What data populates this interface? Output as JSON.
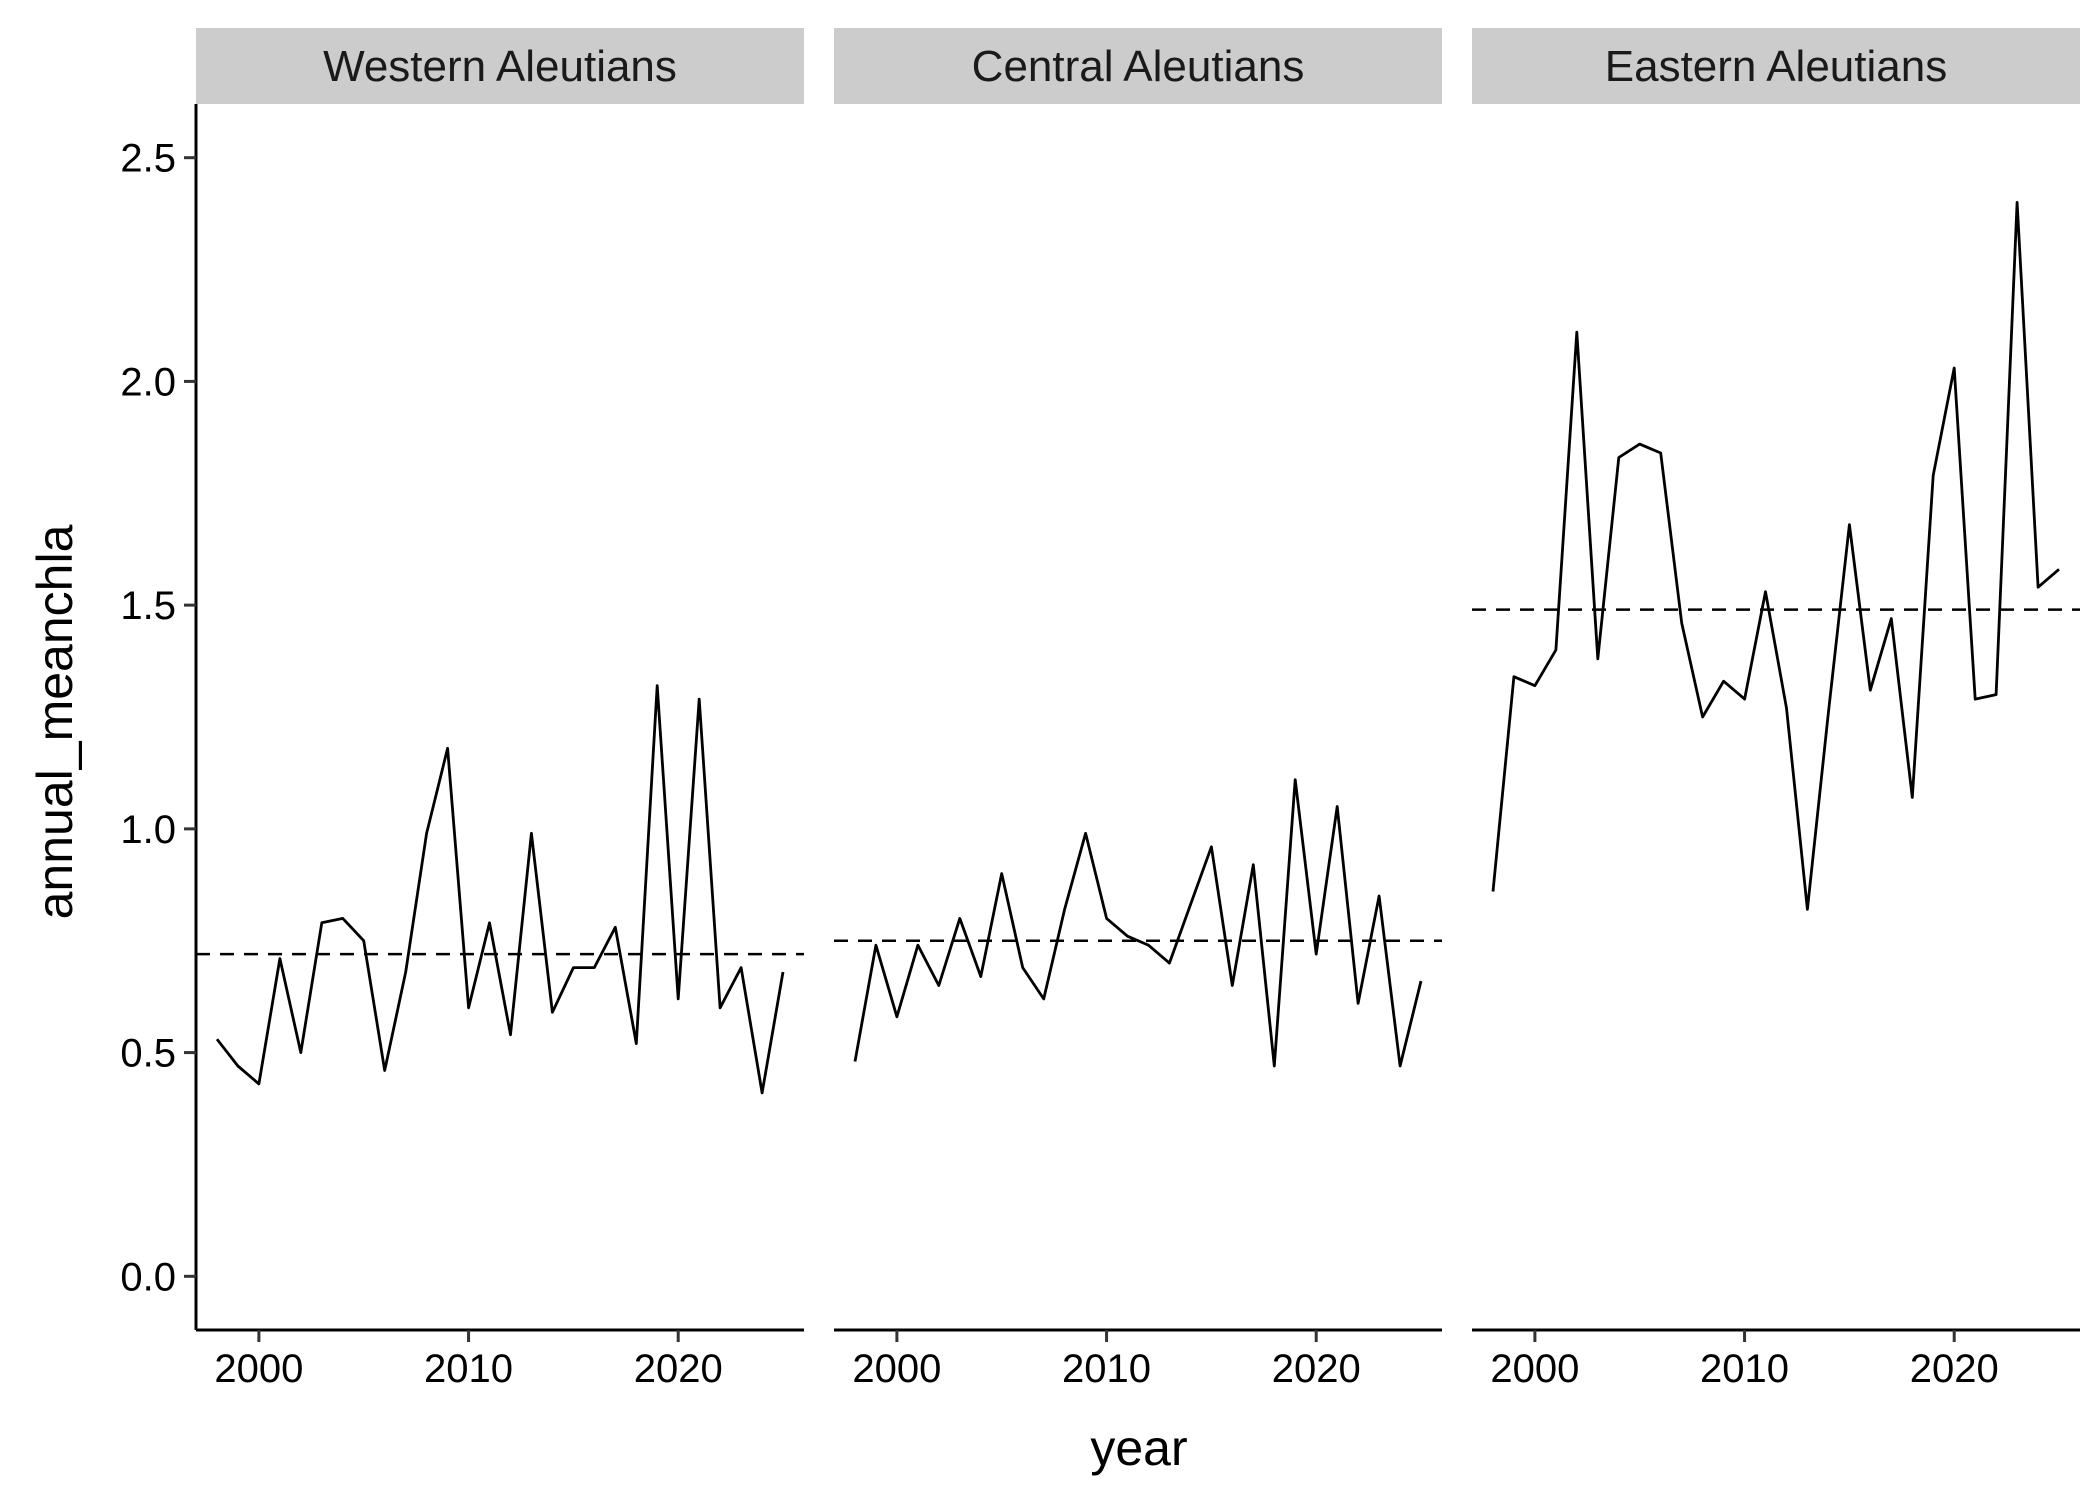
{
  "chart_data": {
    "type": "line",
    "xlabel": "year",
    "ylabel": "annual_meanchla",
    "xlim": [
      1997,
      2026
    ],
    "ylim": [
      -0.12,
      2.62
    ],
    "x_ticks": [
      2000,
      2010,
      2020
    ],
    "x_tick_labels": [
      "2000",
      "2010",
      "2020"
    ],
    "y_ticks": [
      0.0,
      0.5,
      1.0,
      1.5,
      2.0,
      2.5
    ],
    "y_tick_labels": [
      "0.0",
      "0.5",
      "1.0",
      "1.5",
      "2.0",
      "2.5"
    ],
    "grid": false,
    "line_color": "#000000",
    "reference_line": "dashed horizontal at mean",
    "strip_color": "#cccccc",
    "years": [
      1998,
      1999,
      2000,
      2001,
      2002,
      2003,
      2004,
      2005,
      2006,
      2007,
      2008,
      2009,
      2010,
      2011,
      2012,
      2013,
      2014,
      2015,
      2016,
      2017,
      2018,
      2019,
      2020,
      2021,
      2022,
      2023,
      2024,
      2025
    ],
    "panels": [
      {
        "title": "Western Aleutians",
        "mean": 0.72,
        "values": [
          0.53,
          0.47,
          0.43,
          0.71,
          0.5,
          0.79,
          0.8,
          0.75,
          0.46,
          0.68,
          0.99,
          1.18,
          0.6,
          0.79,
          0.54,
          0.99,
          0.59,
          0.69,
          0.69,
          0.78,
          0.52,
          1.32,
          0.62,
          1.29,
          0.6,
          0.69,
          0.41,
          0.68
        ]
      },
      {
        "title": "Central Aleutians",
        "mean": 0.75,
        "values": [
          0.48,
          0.74,
          0.58,
          0.74,
          0.65,
          0.8,
          0.67,
          0.9,
          0.69,
          0.62,
          0.82,
          0.99,
          0.8,
          0.76,
          0.74,
          0.7,
          0.83,
          0.96,
          0.65,
          0.92,
          0.47,
          1.11,
          0.72,
          1.05,
          0.61,
          0.85,
          0.47,
          0.66
        ]
      },
      {
        "title": "Eastern Aleutians",
        "mean": 1.49,
        "values": [
          0.86,
          1.34,
          1.32,
          1.4,
          2.11,
          1.38,
          1.83,
          1.86,
          1.84,
          1.46,
          1.25,
          1.33,
          1.29,
          1.53,
          1.27,
          0.82,
          1.26,
          1.68,
          1.31,
          1.47,
          1.07,
          1.79,
          2.03,
          1.29,
          1.3,
          2.4,
          1.54,
          1.58
        ]
      }
    ]
  }
}
